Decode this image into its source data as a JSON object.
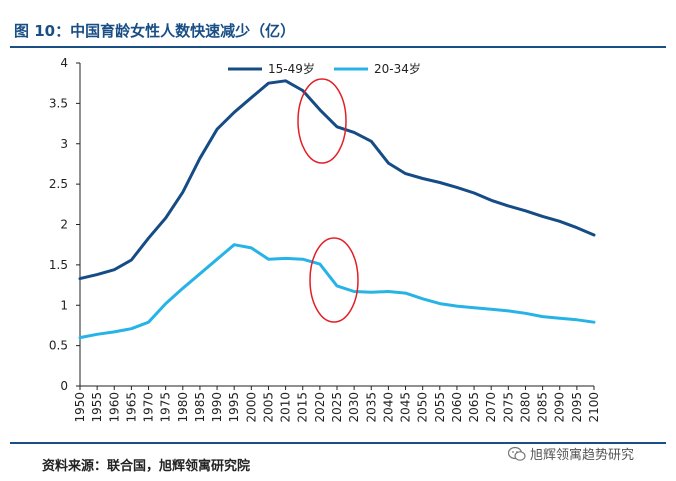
{
  "title": "图 10：中国育龄女性人数快速减少（亿）",
  "source_note": "资料来源：联合国，旭辉领寓研究院",
  "watermark": "旭辉领寓趋势研究",
  "colors": {
    "brand": "#1a4f86",
    "series_15_49": "#154c86",
    "series_20_34": "#27b3e6",
    "highlight": "#e21f26"
  },
  "chart_data": {
    "type": "line",
    "title": "图 10：中国育龄女性人数快速减少（亿）",
    "xlabel": "",
    "ylabel": "",
    "ylim": [
      0,
      4
    ],
    "yticks": [
      "0",
      "0.5",
      "1",
      "1.5",
      "2",
      "2.5",
      "3",
      "3.5",
      "4"
    ],
    "ytick_values": [
      0,
      0.5,
      1,
      1.5,
      2,
      2.5,
      3,
      3.5,
      4
    ],
    "x": [
      1950,
      1955,
      1960,
      1965,
      1970,
      1975,
      1980,
      1985,
      1990,
      1995,
      2000,
      2005,
      2010,
      2015,
      2020,
      2025,
      2030,
      2035,
      2040,
      2045,
      2050,
      2055,
      2060,
      2065,
      2070,
      2075,
      2080,
      2085,
      2090,
      2095,
      2100
    ],
    "xtick_labels": [
      "1950",
      "1955",
      "1960",
      "1965",
      "1970",
      "1975",
      "1980",
      "1985",
      "1990",
      "1995",
      "2000",
      "2005",
      "2010",
      "2015",
      "2020",
      "2025",
      "2030",
      "2035",
      "2040",
      "2045",
      "2050",
      "2055",
      "2060",
      "2065",
      "2070",
      "2075",
      "2080",
      "2085",
      "2090",
      "2095",
      "2100"
    ],
    "legend_position": "top-center",
    "series": [
      {
        "name": "15-49岁",
        "values": [
          1.33,
          1.38,
          1.44,
          1.56,
          1.83,
          2.08,
          2.4,
          2.82,
          3.18,
          3.39,
          3.57,
          3.75,
          3.78,
          3.66,
          3.42,
          3.21,
          3.14,
          3.03,
          2.76,
          2.63,
          2.57,
          2.52,
          2.46,
          2.39,
          2.3,
          2.23,
          2.17,
          2.1,
          2.04,
          1.96,
          1.87
        ]
      },
      {
        "name": "20-34岁",
        "values": [
          0.6,
          0.64,
          0.67,
          0.71,
          0.79,
          1.02,
          1.21,
          1.39,
          1.57,
          1.75,
          1.71,
          1.57,
          1.58,
          1.57,
          1.51,
          1.24,
          1.17,
          1.16,
          1.17,
          1.15,
          1.08,
          1.02,
          0.99,
          0.97,
          0.95,
          0.93,
          0.9,
          0.86,
          0.84,
          0.82,
          0.79
        ]
      }
    ],
    "annotations": [
      {
        "type": "circle",
        "near_x": 2020,
        "series": "15-49岁",
        "value": 3.42
      },
      {
        "type": "circle",
        "near_x": 2025,
        "series": "20-34岁",
        "value": 1.35
      }
    ]
  }
}
